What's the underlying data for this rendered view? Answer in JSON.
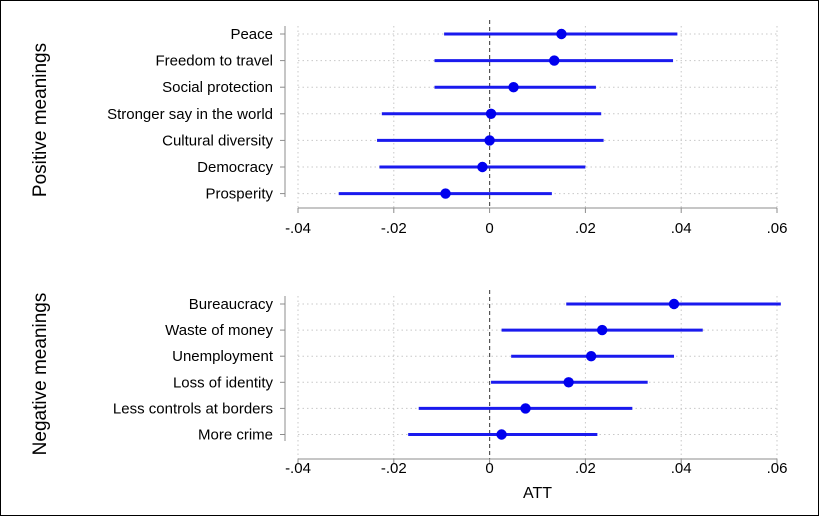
{
  "chart_data": [
    {
      "type": "scatter",
      "variant": "coefficient-plot",
      "panel_title": "Positive meanings",
      "categories": [
        "Peace",
        "Freedom to travel",
        "Social protection",
        "Stronger say in the world",
        "Cultural diversity",
        "Democracy",
        "Prosperity"
      ],
      "estimates": [
        0.015,
        0.0135,
        0.005,
        0.0003,
        0.0,
        -0.0015,
        -0.0092
      ],
      "ci_low": [
        -0.0095,
        -0.0115,
        -0.0115,
        -0.0225,
        -0.0235,
        -0.023,
        -0.0315
      ],
      "ci_high": [
        0.0392,
        0.0383,
        0.0222,
        0.0233,
        0.0238,
        0.02,
        0.013
      ],
      "xlim": [
        -0.04,
        0.06
      ],
      "xticks": [
        -0.04,
        -0.02,
        0,
        0.02,
        0.04,
        0.06
      ],
      "xtick_labels": [
        "-.04",
        "-.02",
        "0",
        ".02",
        ".04",
        ".06"
      ],
      "xlabel": "",
      "reference_line": 0,
      "grid": true
    },
    {
      "type": "scatter",
      "variant": "coefficient-plot",
      "panel_title": "Negative meanings",
      "categories": [
        "Bureaucracy",
        "Waste of money",
        "Unemployment",
        "Loss of identity",
        "Less controls at borders",
        "More crime"
      ],
      "estimates": [
        0.0385,
        0.0235,
        0.0212,
        0.0165,
        0.0075,
        0.0025
      ],
      "ci_low": [
        0.016,
        0.0025,
        0.0045,
        0.0003,
        -0.0148,
        -0.017
      ],
      "ci_high": [
        0.0608,
        0.0445,
        0.0385,
        0.033,
        0.0298,
        0.0225
      ],
      "xlim": [
        -0.04,
        0.06
      ],
      "xticks": [
        -0.04,
        -0.02,
        0,
        0.02,
        0.04,
        0.06
      ],
      "xtick_labels": [
        "-.04",
        "-.02",
        "0",
        ".02",
        ".04",
        ".06"
      ],
      "xlabel": "ATT",
      "reference_line": 0,
      "grid": true
    }
  ],
  "colors": {
    "marker": "#0000ee",
    "ci_line": "#1a1aee",
    "grid": "#c8c8c8",
    "axis": "#8c8c8c",
    "reference": "#555555",
    "frame": "#000000"
  }
}
